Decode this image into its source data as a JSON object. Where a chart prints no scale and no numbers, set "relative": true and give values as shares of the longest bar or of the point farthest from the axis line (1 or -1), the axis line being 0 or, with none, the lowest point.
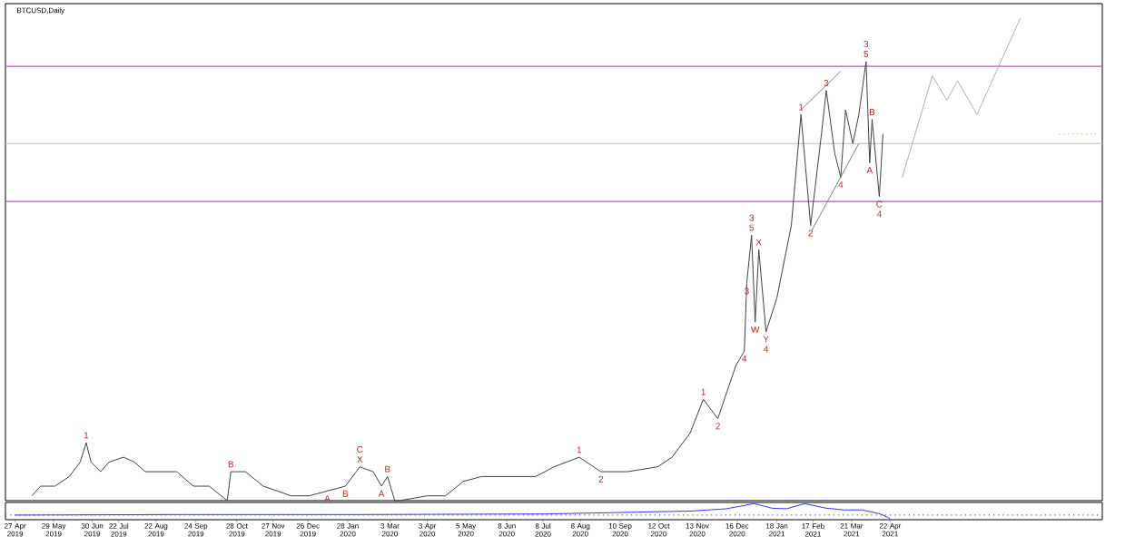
{
  "chart_data": [
    {
      "type": "line",
      "title": "BTCUSD,Daily",
      "relative": true,
      "tick_labels": false,
      "xlim": [
        "2019-04-19",
        "2021-10-15"
      ],
      "series": [
        {
          "color": "#404040",
          "x": [
            "2019-05-11",
            "2019-05-18",
            "2019-05-30",
            "2019-06-11",
            "2019-06-20",
            "2019-06-25",
            "2019-06-29",
            "2019-07-07",
            "2019-07-14",
            "2019-07-26",
            "2019-08-04",
            "2019-08-13",
            "2019-08-25",
            "2019-09-08",
            "2019-09-22",
            "2019-10-05",
            "2019-10-20",
            "2019-10-23",
            "2019-11-04",
            "2019-11-19",
            "2019-12-12",
            "2019-12-27",
            "2020-01-11",
            "2020-01-26",
            "2020-02-07",
            "2020-02-18",
            "2020-02-25",
            "2020-03-01",
            "2020-03-07",
            "2020-03-11",
            "2020-04-03",
            "2020-04-18",
            "2020-05-03",
            "2020-05-18",
            "2020-06-10",
            "2020-07-02",
            "2020-07-17",
            "2020-08-07",
            "2020-08-25",
            "2020-09-16",
            "2020-10-11",
            "2020-10-23",
            "2020-11-07",
            "2020-11-18",
            "2020-11-30",
            "2020-12-15",
            "2020-12-22",
            "2020-12-24",
            "2020-12-28",
            "2020-12-31",
            "2021-01-03",
            "2021-01-09",
            "2021-01-18",
            "2021-01-30",
            "2021-02-07",
            "2021-02-15",
            "2021-02-24",
            "2021-02-28",
            "2021-03-07",
            "2021-03-12",
            "2021-03-16",
            "2021-03-22",
            "2021-03-27",
            "2021-04-02",
            "2021-04-05",
            "2021-04-07",
            "2021-04-13",
            "2021-04-16"
          ],
          "values": [
            0.01,
            0.03,
            0.03,
            0.05,
            0.08,
            0.12,
            0.08,
            0.06,
            0.08,
            0.09,
            0.08,
            0.06,
            0.06,
            0.06,
            0.03,
            0.03,
            0.0,
            0.06,
            0.06,
            0.03,
            0.01,
            0.01,
            0.02,
            0.03,
            0.07,
            0.06,
            0.03,
            0.05,
            0.0,
            0.0,
            0.01,
            0.01,
            0.04,
            0.05,
            0.05,
            0.05,
            0.07,
            0.09,
            0.06,
            0.06,
            0.07,
            0.09,
            0.14,
            0.21,
            0.17,
            0.28,
            0.31,
            0.45,
            0.55,
            0.37,
            0.52,
            0.35,
            0.42,
            0.57,
            0.8,
            0.57,
            0.76,
            0.85,
            0.72,
            0.67,
            0.81,
            0.74,
            0.8,
            0.91,
            0.7,
            0.79,
            0.63,
            0.76
          ]
        },
        {
          "color": "#b0b0b0",
          "x": [
            "2021-05-02",
            "2021-05-27",
            "2021-06-08",
            "2021-06-17",
            "2021-07-03",
            "2021-08-08"
          ],
          "values": [
            0.67,
            0.88,
            0.83,
            0.87,
            0.8,
            1.0
          ]
        },
        {
          "color": "#808080",
          "x": [
            "2021-02-07",
            "2021-03-12"
          ],
          "values": [
            0.81,
            0.89
          ]
        },
        {
          "color": "#808080",
          "x": [
            "2021-02-16",
            "2021-03-27"
          ],
          "values": [
            0.56,
            0.74
          ]
        },
        {
          "color": "#ff8c40",
          "line_style": "dotted",
          "x": [
            "2021-09-09",
            "2021-10-12"
          ],
          "values": [
            0.76,
            0.76
          ]
        }
      ],
      "ref_lines": [
        {
          "axis": "y",
          "value": 0.9,
          "color": "#b05fb0"
        },
        {
          "axis": "y",
          "value": 0.62,
          "color": "#b05fb0"
        },
        {
          "axis": "y",
          "value": 0.74,
          "color": "#c8c8c8"
        }
      ],
      "annotations": [
        {
          "text": "1",
          "x": "2019-06-25",
          "y": 0.12
        },
        {
          "text": "B",
          "x": "2019-10-23",
          "y": 0.06
        },
        {
          "text": "A",
          "x": "2020-01-11",
          "y": 0.02
        },
        {
          "text": "B",
          "x": "2020-01-26",
          "y": 0.03
        },
        {
          "text": "X",
          "x": "2020-02-07",
          "y": 0.07
        },
        {
          "text": "C",
          "x": "2020-02-07",
          "y": 0.07
        },
        {
          "text": "A",
          "x": "2020-02-25",
          "y": 0.03
        },
        {
          "text": "B",
          "x": "2020-03-01",
          "y": 0.05
        },
        {
          "text": "1",
          "x": "2020-08-07",
          "y": 0.09
        },
        {
          "text": "2",
          "x": "2020-08-25",
          "y": 0.06
        },
        {
          "text": "1",
          "x": "2020-11-18",
          "y": 0.21
        },
        {
          "text": "2",
          "x": "2020-11-30",
          "y": 0.17
        },
        {
          "text": "4",
          "x": "2020-12-22",
          "y": 0.31
        },
        {
          "text": "3",
          "x": "2020-12-24",
          "y": 0.45
        },
        {
          "text": "W",
          "x": "2020-12-31",
          "y": 0.37
        },
        {
          "text": "5",
          "x": "2020-12-28",
          "y": 0.55
        },
        {
          "text": "3",
          "x": "2020-12-28",
          "y": 0.55
        },
        {
          "text": "X",
          "x": "2021-01-03",
          "y": 0.52
        },
        {
          "text": "Y",
          "x": "2021-01-09",
          "y": 0.35
        },
        {
          "text": "4",
          "x": "2021-01-09",
          "y": 0.35
        },
        {
          "text": "1",
          "x": "2021-02-07",
          "y": 0.8
        },
        {
          "text": "2",
          "x": "2021-02-15",
          "y": 0.57
        },
        {
          "text": "3",
          "x": "2021-02-28",
          "y": 0.85
        },
        {
          "text": "4",
          "x": "2021-03-12",
          "y": 0.67
        },
        {
          "text": "5",
          "x": "2021-04-02",
          "y": 0.91
        },
        {
          "text": "3",
          "x": "2021-04-02",
          "y": 0.91
        },
        {
          "text": "B",
          "x": "2021-04-07",
          "y": 0.79
        },
        {
          "text": "A",
          "x": "2021-04-05",
          "y": 0.7
        },
        {
          "text": "C",
          "x": "2021-04-13",
          "y": 0.63
        },
        {
          "text": "4",
          "x": "2021-04-13",
          "y": 0.63
        }
      ]
    },
    {
      "type": "line",
      "relative": true,
      "tick_labels": "x",
      "xlim": [
        "2019-04-19",
        "2021-10-15"
      ],
      "xticks": [
        {
          "value": "2019-04-27",
          "label": "27 Apr 2019"
        },
        {
          "value": "2019-05-29",
          "label": "29 May 2019"
        },
        {
          "value": "2019-06-30",
          "label": "30 Jun 2019"
        },
        {
          "value": "2019-07-22",
          "label": "22 Jul 2019"
        },
        {
          "value": "2019-08-22",
          "label": "22 Aug 2019"
        },
        {
          "value": "2019-09-24",
          "label": "24 Sep 2019"
        },
        {
          "value": "2019-10-28",
          "label": "28 Oct 2019"
        },
        {
          "value": "2019-11-27",
          "label": "27 Nov 2019"
        },
        {
          "value": "2019-12-26",
          "label": "26 Dec 2019"
        },
        {
          "value": "2020-01-28",
          "label": "28 Jan 2020"
        },
        {
          "value": "2020-03-03",
          "label": "3 Mar 2020"
        },
        {
          "value": "2020-04-03",
          "label": "3 Apr 2020"
        },
        {
          "value": "2020-05-05",
          "label": "5 May 2020"
        },
        {
          "value": "2020-06-08",
          "label": "8 Jun 2020"
        },
        {
          "value": "2020-07-08",
          "label": "8 Jul 2020"
        },
        {
          "value": "2020-08-08",
          "label": "8 Aug 2020"
        },
        {
          "value": "2020-09-10",
          "label": "10 Sep 2020"
        },
        {
          "value": "2020-10-12",
          "label": "12 Oct 2020"
        },
        {
          "value": "2020-11-13",
          "label": "13 Nov 2020"
        },
        {
          "value": "2020-12-16",
          "label": "16 Dec 2020"
        },
        {
          "value": "2021-01-18",
          "label": "18 Jan 2021"
        },
        {
          "value": "2021-02-17",
          "label": "17 Feb 2021"
        },
        {
          "value": "2021-03-21",
          "label": "21 Mar 2021"
        },
        {
          "value": "2021-04-22",
          "label": "22 Apr 2021"
        }
      ],
      "series": [
        {
          "color": "#3333ff",
          "x": [
            "2019-04-27",
            "2019-09-13",
            "2020-02-10",
            "2020-07-10",
            "2020-11-07",
            "2020-12-07",
            "2020-12-30",
            "2021-01-14",
            "2021-01-26",
            "2021-02-10",
            "2021-02-28",
            "2021-03-15",
            "2021-03-30",
            "2021-04-14",
            "2021-04-22"
          ],
          "values": [
            0,
            0.05,
            0.05,
            0.1,
            0.35,
            0.55,
            1.0,
            0.6,
            0.55,
            1.0,
            0.6,
            0.45,
            0.45,
            0.1,
            -0.3
          ]
        }
      ],
      "ref_lines": [
        {
          "axis": "y",
          "value": 0,
          "color": "#606060",
          "line_style": "dotted"
        }
      ]
    }
  ]
}
